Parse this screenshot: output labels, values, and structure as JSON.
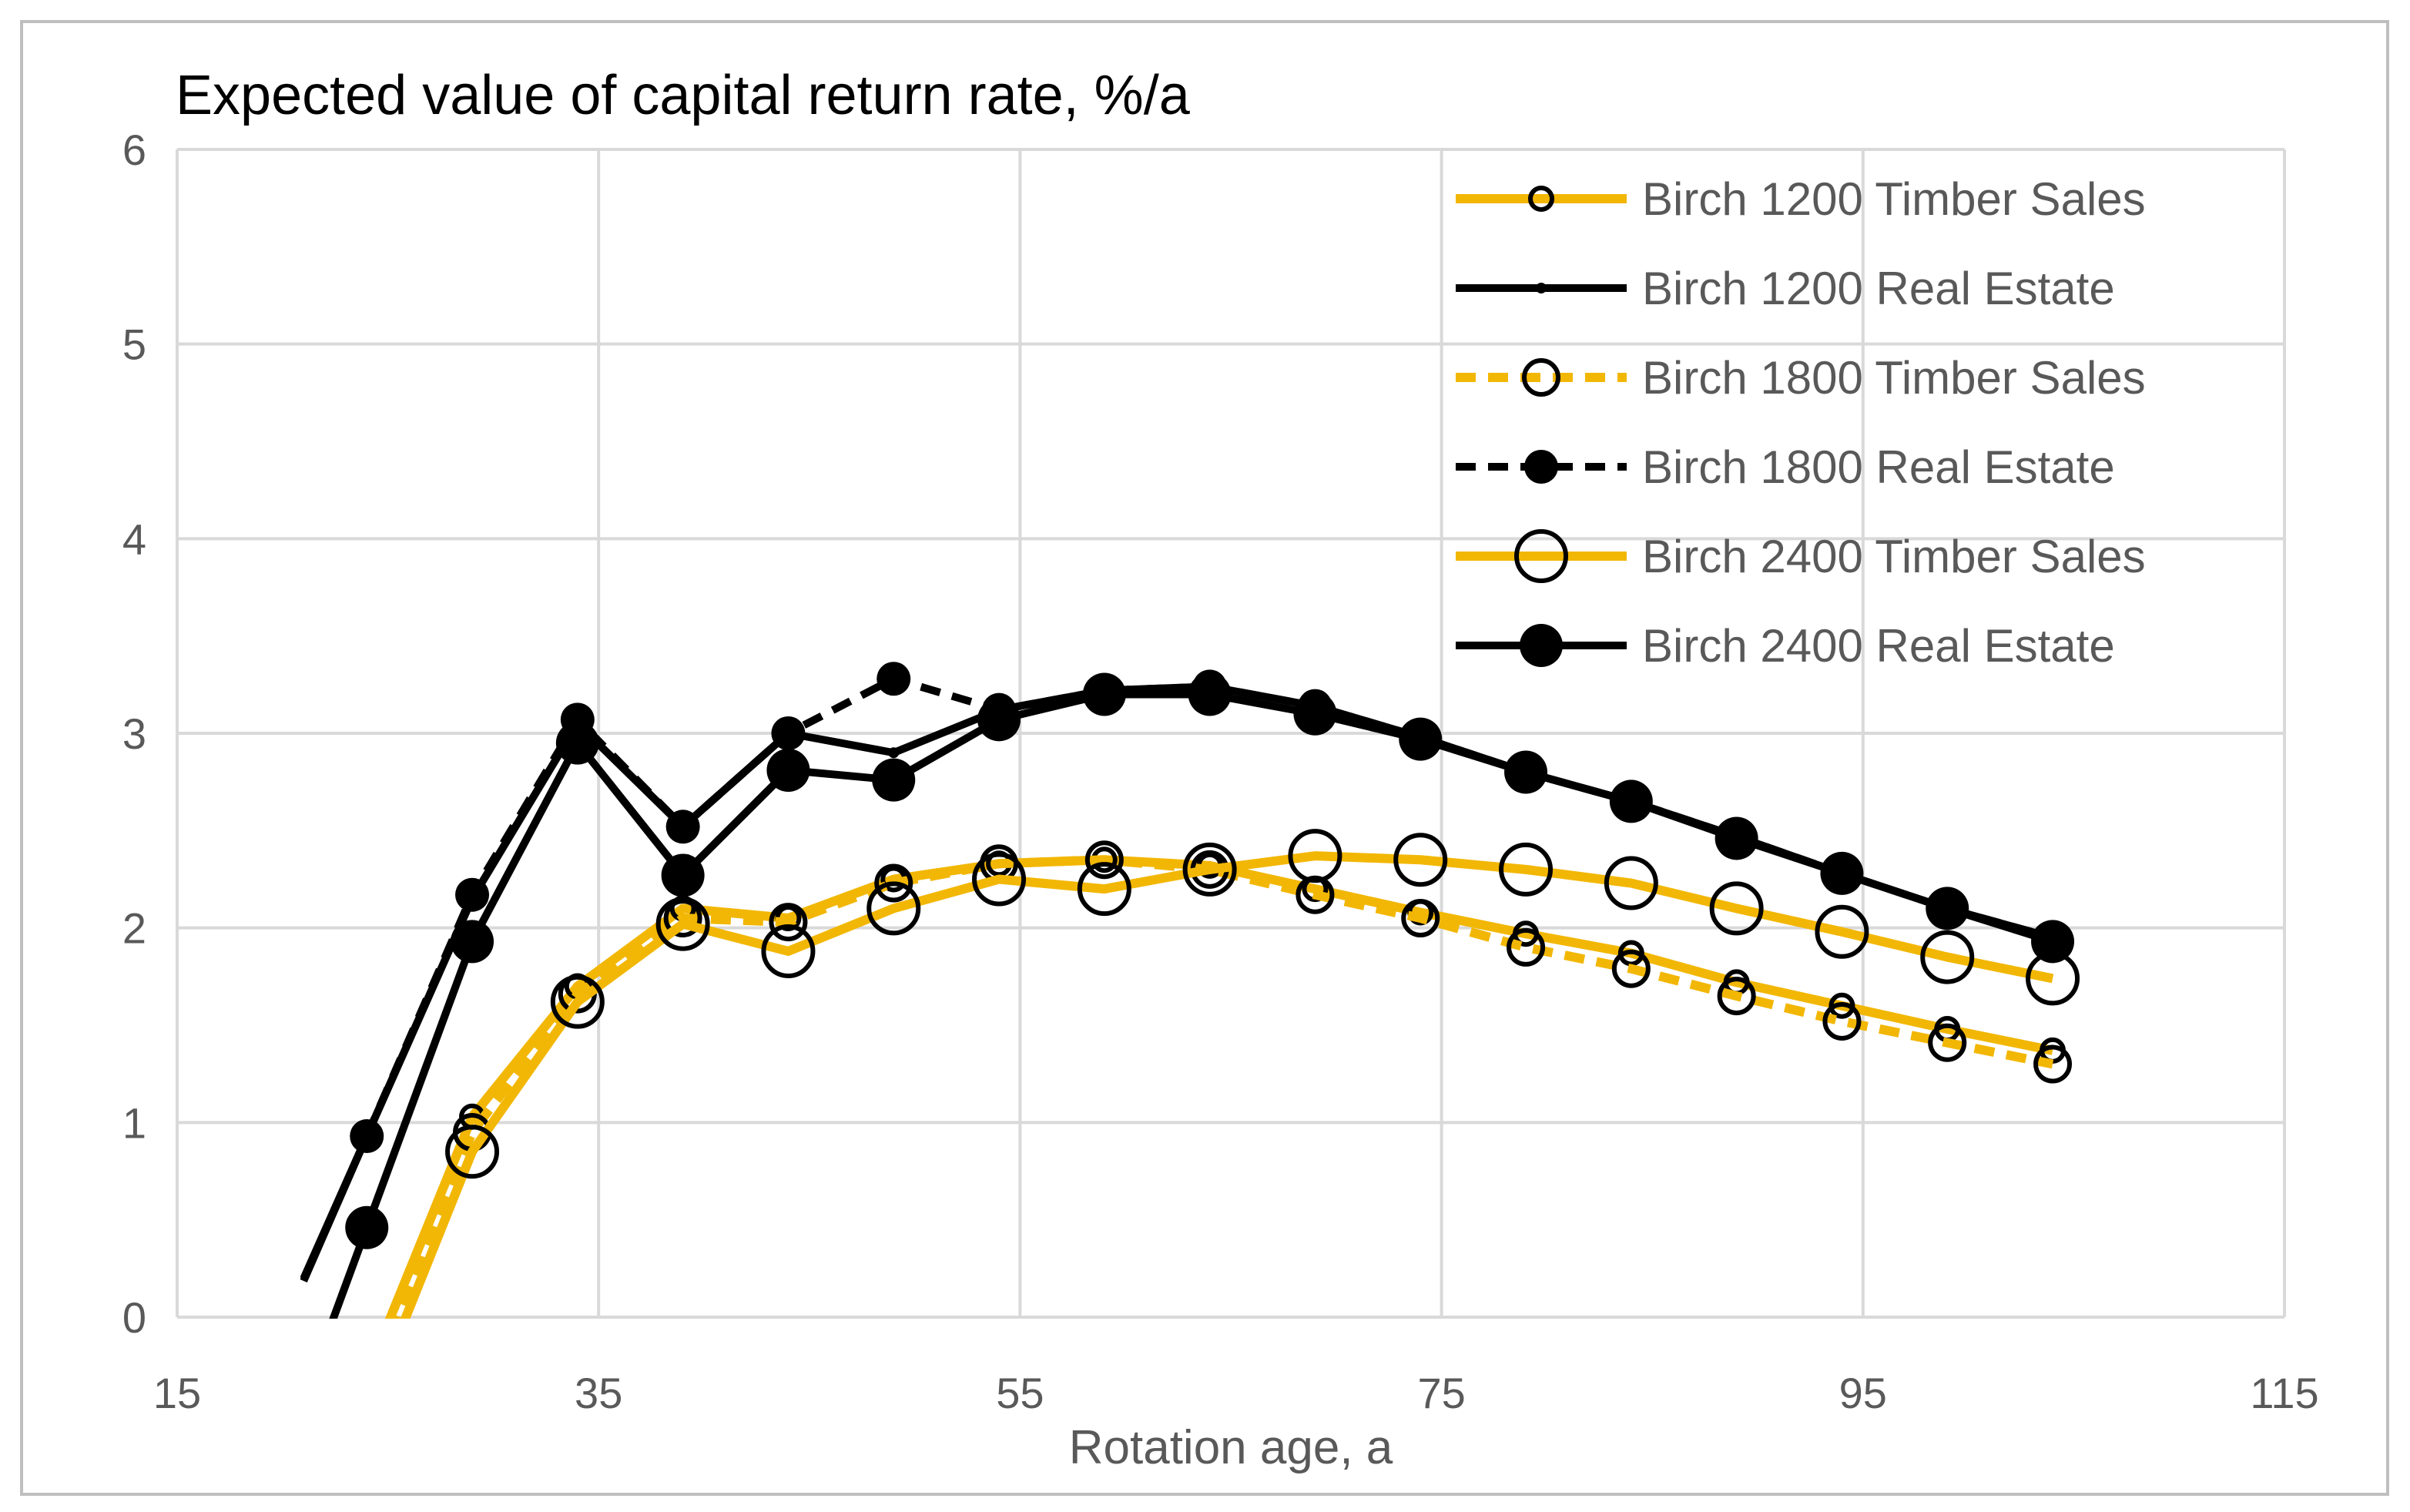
{
  "chart_data": {
    "type": "line",
    "title": "Expected value of capital return rate,  %/a",
    "xlabel": "Rotation age, a",
    "ylabel": "",
    "xlim": [
      15,
      115
    ],
    "ylim": [
      0,
      6
    ],
    "xticks": [
      15,
      35,
      55,
      75,
      95,
      115
    ],
    "yticks": [
      0,
      1,
      2,
      3,
      4,
      5,
      6
    ],
    "grid": true,
    "legend_position": "top-right",
    "x": [
      24,
      29,
      34,
      39,
      44,
      49,
      54,
      59,
      64,
      69,
      74,
      79,
      84,
      89,
      94,
      99,
      104
    ],
    "series": [
      {
        "name": "Birch 1200 Timber Sales",
        "color": "#F2B705",
        "dash": "solid",
        "marker": "small-open-circle",
        "values": [
          -0.3,
          1.03,
          1.7,
          2.1,
          2.05,
          2.25,
          2.33,
          2.35,
          2.32,
          2.2,
          2.08,
          1.97,
          1.87,
          1.72,
          1.6,
          1.48,
          1.37
        ]
      },
      {
        "name": "Birch 1200 Real Estate",
        "color": "#000000",
        "dash": "solid",
        "marker": "small-dot",
        "values": [
          0.93,
          2.15,
          3.05,
          2.52,
          3.0,
          2.9,
          3.12,
          3.22,
          3.24,
          3.14,
          2.98,
          2.8,
          2.65,
          2.47,
          2.28,
          2.1,
          1.95
        ]
      },
      {
        "name": "Birch 1800 Timber Sales",
        "color": "#F2B705",
        "dash": "dashed",
        "marker": "medium-open-circle",
        "values": [
          -0.4,
          0.95,
          1.66,
          2.05,
          2.03,
          2.23,
          2.33,
          2.35,
          2.3,
          2.17,
          2.05,
          1.9,
          1.79,
          1.65,
          1.52,
          1.41,
          1.3
        ]
      },
      {
        "name": "Birch 1800 Real Estate",
        "color": "#000000",
        "dash": "dashed",
        "marker": "medium-dot",
        "values": [
          0.93,
          2.17,
          3.07,
          2.52,
          3.0,
          3.28,
          3.12,
          3.22,
          3.24,
          3.14,
          2.98,
          2.8,
          2.65,
          2.47,
          2.28,
          2.1,
          1.95
        ]
      },
      {
        "name": "Birch 2400 Timber Sales",
        "color": "#F2B705",
        "dash": "solid",
        "marker": "large-open-circle",
        "values": [
          -0.5,
          0.85,
          1.62,
          2.02,
          1.88,
          2.1,
          2.25,
          2.2,
          2.3,
          2.37,
          2.35,
          2.3,
          2.23,
          2.1,
          1.98,
          1.85,
          1.74
        ]
      },
      {
        "name": "Birch 2400 Real Estate",
        "color": "#000000",
        "dash": "solid",
        "marker": "large-dot",
        "values": [
          0.46,
          1.93,
          2.95,
          2.27,
          2.81,
          2.76,
          3.07,
          3.2,
          3.2,
          3.1,
          2.97,
          2.8,
          2.65,
          2.46,
          2.28,
          2.1,
          1.93
        ]
      }
    ]
  }
}
